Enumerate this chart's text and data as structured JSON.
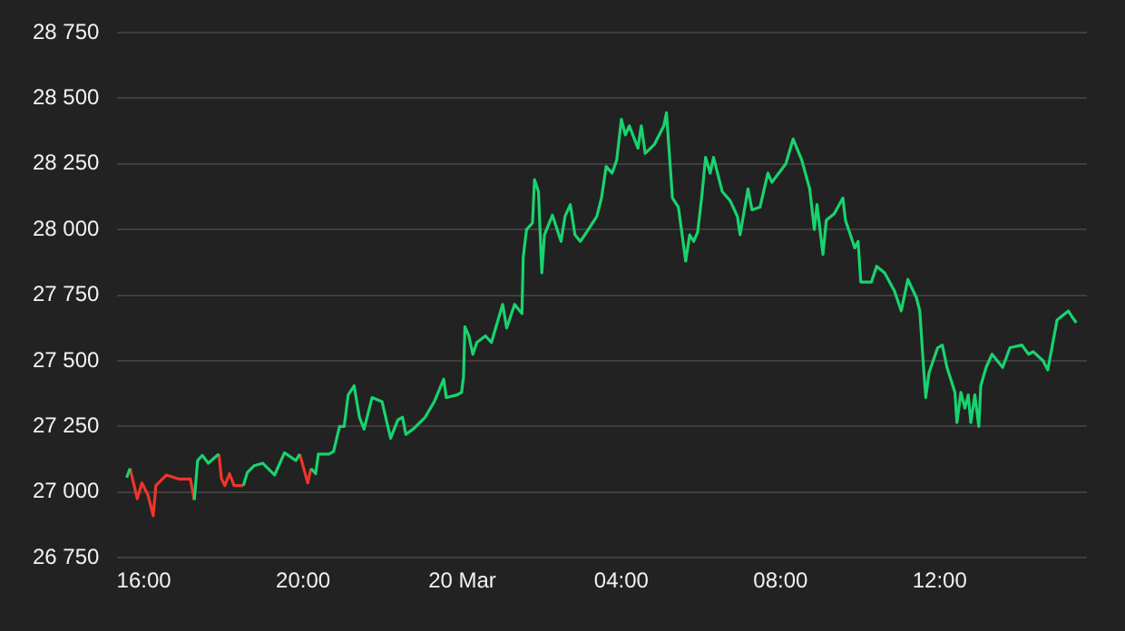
{
  "chart_data": {
    "type": "line",
    "x": [
      "--03-19T15:34",
      "--03-19T15:39",
      "--03-19T15:50",
      "--03-19T15:57",
      "--03-19T16:06",
      "--03-19T16:14",
      "--03-19T16:18",
      "--03-19T16:34",
      "--03-19T16:52",
      "--03-19T17:10",
      "--03-19T17:16",
      "--03-19T17:21",
      "--03-19T17:28",
      "--03-19T17:37",
      "--03-19T17:53",
      "--03-19T17:57",
      "--03-19T18:02",
      "--03-19T18:09",
      "--03-19T18:16",
      "--03-19T18:30",
      "--03-19T18:36",
      "--03-19T18:46",
      "--03-19T18:59",
      "--03-19T19:17",
      "--03-19T19:32",
      "--03-19T19:49",
      "--03-19T19:55",
      "--03-19T20:07",
      "--03-19T20:12",
      "--03-19T20:19",
      "--03-19T20:23",
      "--03-19T20:39",
      "--03-19T20:46",
      "--03-19T20:55",
      "--03-19T21:02",
      "--03-19T21:08",
      "--03-19T21:17",
      "--03-19T21:25",
      "--03-19T21:32",
      "--03-19T21:44",
      "--03-19T21:59",
      "--03-19T22:12",
      "--03-19T22:23",
      "--03-19T22:30",
      "--03-19T22:35",
      "--03-19T22:46",
      "--03-19T23:04",
      "--03-19T23:18",
      "--03-19T23:32",
      "--03-19T23:36",
      "--03-19T23:52",
      "--03-19T23:59",
      "--03-20T00:02",
      "--03-20T00:04",
      "--03-20T00:10",
      "--03-20T00:16",
      "--03-20T00:22",
      "--03-20T00:35",
      "--03-20T00:44",
      "--03-20T01:01",
      "--03-20T01:07",
      "--03-20T01:19",
      "--03-20T01:30",
      "--03-20T01:32",
      "--03-20T01:37",
      "--03-20T01:46",
      "--03-20T01:49",
      "--03-20T01:55",
      "--03-20T02:00",
      "--03-20T02:04",
      "--03-20T02:16",
      "--03-20T02:29",
      "--03-20T02:35",
      "--03-20T02:43",
      "--03-20T02:50",
      "--03-20T02:58",
      "--03-20T03:05",
      "--03-20T03:23",
      "--03-20T03:30",
      "--03-20T03:37",
      "--03-20T03:46",
      "--03-20T03:53",
      "--03-20T04:00",
      "--03-20T04:06",
      "--03-20T04:12",
      "--03-20T04:25",
      "--03-20T04:30",
      "--03-20T04:36",
      "--03-20T04:50",
      "--03-20T05:04",
      "--03-20T05:08",
      "--03-20T05:13",
      "--03-20T05:17",
      "--03-20T05:26",
      "--03-20T05:37",
      "--03-20T05:43",
      "--03-20T05:49",
      "--03-20T05:55",
      "--03-20T06:01",
      "--03-20T06:07",
      "--03-20T06:14",
      "--03-20T06:19",
      "--03-20T06:32",
      "--03-20T06:44",
      "--03-20T06:55",
      "--03-20T06:59",
      "--03-20T07:11",
      "--03-20T07:17",
      "--03-20T07:29",
      "--03-20T07:41",
      "--03-20T07:47",
      "--03-20T08:08",
      "--03-20T08:19",
      "--03-20T08:32",
      "--03-20T08:44",
      "--03-20T08:51",
      "--03-20T08:55",
      "--03-20T09:04",
      "--03-20T09:09",
      "--03-20T09:21",
      "--03-20T09:34",
      "--03-20T09:38",
      "--03-20T09:52",
      "--03-20T09:57",
      "--03-20T10:01",
      "--03-20T10:17",
      "--03-20T10:25",
      "--03-20T10:37",
      "--03-20T10:52",
      "--03-20T11:02",
      "--03-20T11:12",
      "--03-20T11:25",
      "--03-20T11:30",
      "--03-20T11:35",
      "--03-20T11:39",
      "--03-20T11:44",
      "--03-20T11:57",
      "--03-20T12:04",
      "--03-20T12:11",
      "--03-20T12:23",
      "--03-20T12:26",
      "--03-20T12:32",
      "--03-20T12:38",
      "--03-20T12:43",
      "--03-20T12:47",
      "--03-20T12:53",
      "--03-20T12:59",
      "--03-20T13:02",
      "--03-20T13:10",
      "--03-20T13:19",
      "--03-20T13:35",
      "--03-20T13:46",
      "--03-20T14:04",
      "--03-20T14:14",
      "--03-20T14:21",
      "--03-20T14:36",
      "--03-20T14:43",
      "--03-20T14:50",
      "--03-20T14:57",
      "--03-20T15:14",
      "--03-20T15:19",
      "--03-20T15:26"
    ],
    "series": [
      {
        "color": "#18d36e",
        "values": [
          27055,
          27090,
          null,
          null,
          null,
          null,
          null,
          null,
          null,
          null,
          26970,
          27120,
          27140,
          27110,
          27145,
          null,
          null,
          null,
          null,
          27025,
          27075,
          27100,
          27110,
          27065,
          27150,
          27120,
          27145,
          null,
          27090,
          27070,
          27145,
          27145,
          27155,
          27250,
          27250,
          27370,
          27405,
          27285,
          27240,
          27360,
          27345,
          27205,
          27275,
          27285,
          27220,
          27240,
          27285,
          27345,
          27430,
          27360,
          27370,
          27380,
          27440,
          27630,
          27595,
          27525,
          27570,
          27595,
          27570,
          27715,
          27625,
          27715,
          27680,
          27895,
          28000,
          28025,
          28190,
          28145,
          27835,
          27980,
          28055,
          27955,
          28050,
          28095,
          27980,
          27955,
          27980,
          28050,
          28120,
          28240,
          28215,
          28265,
          28420,
          28360,
          28395,
          28310,
          28395,
          28290,
          28325,
          28395,
          28445,
          28265,
          28120,
          28085,
          27880,
          27980,
          27955,
          27990,
          28120,
          28275,
          28215,
          28275,
          28145,
          28110,
          28050,
          27980,
          28155,
          28075,
          28085,
          28215,
          28180,
          28250,
          28345,
          28265,
          28155,
          28000,
          28095,
          27905,
          28035,
          28060,
          28120,
          28035,
          27930,
          27955,
          27800,
          27800,
          27860,
          27835,
          27765,
          27690,
          27810,
          27740,
          27690,
          27500,
          27360,
          27455,
          27550,
          27560,
          27475,
          27380,
          27265,
          27380,
          27320,
          27370,
          27265,
          27370,
          27250,
          27405,
          27475,
          27525,
          27475,
          27550,
          27560,
          27525,
          27535,
          27500,
          27465,
          27560,
          27655,
          27690,
          27670,
          27645
        ]
      },
      {
        "color": "#f0352b",
        "values": [
          null,
          27090,
          26975,
          27035,
          26990,
          26910,
          27025,
          27065,
          27050,
          27050,
          26970,
          null,
          null,
          null,
          27145,
          27050,
          27025,
          27070,
          27025,
          27025,
          null,
          null,
          null,
          null,
          null,
          null,
          27145,
          27035,
          27090,
          null,
          null,
          null,
          null,
          null,
          null,
          null,
          null,
          null,
          null,
          null,
          null,
          null,
          null,
          null,
          null,
          null,
          null,
          null,
          null,
          null,
          null,
          null,
          null,
          null,
          null,
          null,
          null,
          null,
          null,
          null,
          null,
          null,
          null,
          null,
          null,
          null,
          null,
          null,
          null,
          null,
          null,
          null,
          null,
          null,
          null,
          null,
          null,
          null,
          null,
          null,
          null,
          null,
          null,
          null,
          null,
          null,
          null,
          null,
          null,
          null,
          null,
          null,
          null,
          null,
          null,
          null,
          null,
          null,
          null,
          null,
          null,
          null,
          null,
          null,
          null,
          null,
          null,
          null,
          null,
          null,
          null,
          null,
          null,
          null,
          null,
          null,
          null,
          null,
          null,
          null,
          null,
          null,
          null,
          null,
          null,
          null,
          null,
          null,
          null,
          null,
          null,
          null,
          null,
          null,
          null,
          null,
          null,
          null,
          null,
          null,
          null,
          null,
          null,
          null,
          null,
          null,
          null,
          null,
          null,
          null,
          null,
          null,
          null,
          null,
          null,
          null,
          null,
          null,
          null,
          null,
          null,
          null
        ]
      }
    ],
    "xlim": [
      "--03-19T15:20",
      "--03-20T15:42"
    ],
    "xticks": [
      {
        "value": "--03-19T16:00",
        "label": "16:00"
      },
      {
        "value": "--03-19T20:00",
        "label": "20:00"
      },
      {
        "value": "--03-20T00:00",
        "label": "20 Mar"
      },
      {
        "value": "--03-20T04:00",
        "label": "04:00"
      },
      {
        "value": "--03-20T08:00",
        "label": "08:00"
      },
      {
        "value": "--03-20T12:00",
        "label": "12:00"
      }
    ],
    "ylim": [
      26750,
      28750
    ],
    "yticks": [
      {
        "value": 26750,
        "label": "26 750"
      },
      {
        "value": 27000,
        "label": "27 000"
      },
      {
        "value": 27250,
        "label": "27 250"
      },
      {
        "value": 27500,
        "label": "27 500"
      },
      {
        "value": 27750,
        "label": "27 750"
      },
      {
        "value": 28000,
        "label": "28 000"
      },
      {
        "value": 28250,
        "label": "28 250"
      },
      {
        "value": 28500,
        "label": "28 500"
      },
      {
        "value": 28750,
        "label": "28 750"
      }
    ],
    "grid": "y",
    "legend": false,
    "marker": "none",
    "line_style": "solid"
  }
}
